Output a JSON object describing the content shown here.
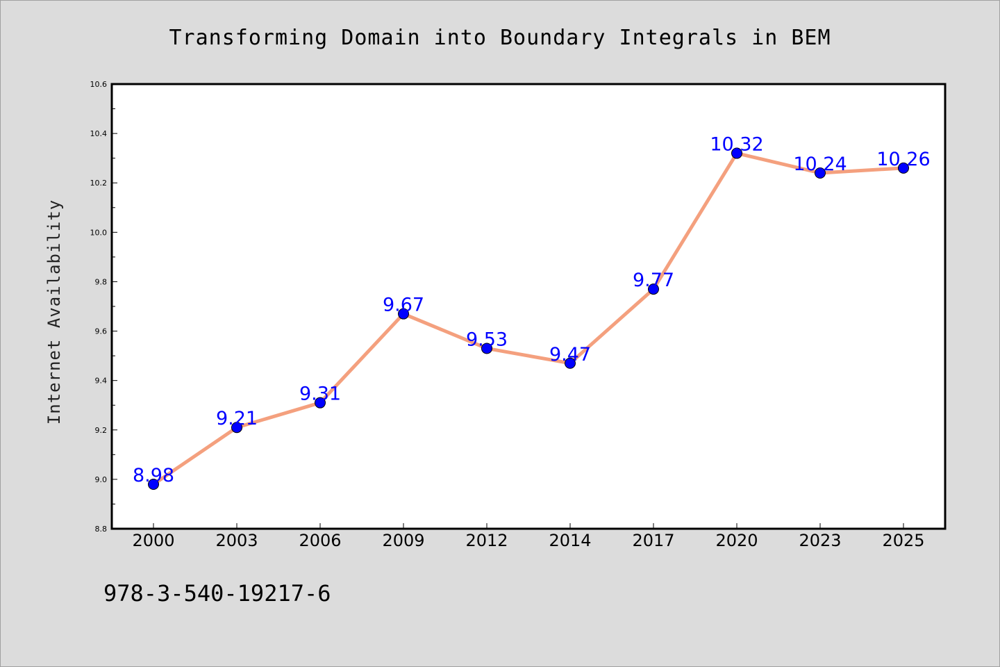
{
  "chart_data": {
    "type": "line",
    "title": "Transforming Domain into Boundary Integrals in BEM",
    "xlabel": "",
    "ylabel": "Internet Availability",
    "categories": [
      "2000",
      "2003",
      "2006",
      "2009",
      "2012",
      "2014",
      "2017",
      "2020",
      "2023",
      "2025"
    ],
    "series": [
      {
        "values": [
          8.98,
          9.21,
          9.31,
          9.67,
          9.53,
          9.47,
          9.77,
          10.32,
          10.24,
          10.26
        ]
      }
    ],
    "data_labels": [
      "8.98",
      "9.21",
      "9.31",
      "9.67",
      "9.53",
      "9.47",
      "9.77",
      "10.32",
      "10.24",
      "10.26"
    ],
    "ylim": [
      8.8,
      10.6
    ],
    "yticks": [
      "8.8",
      "9.0",
      "9.2",
      "9.4",
      "9.6",
      "9.8",
      "10.0",
      "10.2",
      "10.4",
      "10.6"
    ],
    "grid": false,
    "legend": "none",
    "annotation": "978-3-540-19217-6",
    "colors": {
      "line": "#f4a07e",
      "marker": "#0000ff",
      "label": "#0000ff",
      "background": "#dcdcdc",
      "plot_background": "#ffffff"
    }
  }
}
